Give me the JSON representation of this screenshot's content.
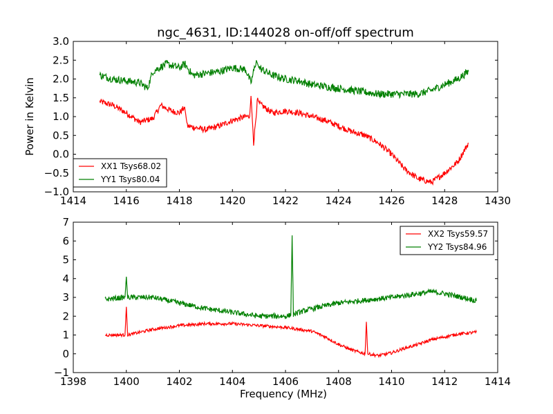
{
  "chart_data": [
    {
      "type": "line",
      "title": "ngc_4631, ID:144028 on-off/off spectrum",
      "xlabel": "",
      "ylabel": "Power in Kelvin",
      "xlim": [
        1414,
        1430
      ],
      "ylim": [
        -1.0,
        3.0
      ],
      "xticks": [
        "1414",
        "1416",
        "1418",
        "1420",
        "1422",
        "1424",
        "1426",
        "1428",
        "1430"
      ],
      "yticks": [
        "−1.0",
        "−0.5",
        "0.0",
        "0.5",
        "1.0",
        "1.5",
        "2.0",
        "2.5",
        "3.0"
      ],
      "xtick_values": [
        1414,
        1416,
        1418,
        1420,
        1422,
        1424,
        1426,
        1428,
        1430
      ],
      "ytick_values": [
        -1.0,
        -0.5,
        0.0,
        0.5,
        1.0,
        1.5,
        2.0,
        2.5,
        3.0
      ],
      "legend_position": "lower-left",
      "series": [
        {
          "name": "XX1 Tsys68.02",
          "color": "#ff0000",
          "noise": 0.08,
          "x": [
            1415,
            1415.5,
            1416,
            1416.5,
            1417,
            1417.3,
            1417.7,
            1418,
            1418.2,
            1418.3,
            1419,
            1419.5,
            1420,
            1420.5,
            1420.65,
            1420.7,
            1420.8,
            1420.95,
            1421,
            1421.5,
            1422,
            1422.5,
            1423,
            1423.5,
            1424,
            1424.5,
            1425,
            1425.5,
            1426,
            1426.5,
            1427,
            1427.5,
            1428,
            1428.5,
            1428.9
          ],
          "y": [
            1.4,
            1.3,
            1.1,
            0.85,
            0.95,
            1.3,
            1.15,
            1.1,
            1.25,
            0.75,
            0.65,
            0.75,
            0.9,
            1.0,
            1.0,
            1.55,
            0.3,
            1.5,
            1.35,
            1.1,
            1.15,
            1.1,
            1.0,
            0.9,
            0.75,
            0.6,
            0.5,
            0.3,
            0.0,
            -0.4,
            -0.65,
            -0.75,
            -0.5,
            -0.2,
            0.3
          ]
        },
        {
          "name": "YY1 Tsys80.04",
          "color": "#008000",
          "noise": 0.1,
          "x": [
            1415,
            1415.5,
            1416,
            1416.5,
            1416.8,
            1417,
            1417.5,
            1418,
            1418.2,
            1418.5,
            1419,
            1419.5,
            1420,
            1420.5,
            1420.7,
            1420.9,
            1421,
            1421.5,
            1422,
            1422.5,
            1423,
            1423.5,
            1424,
            1424.5,
            1425,
            1425.5,
            1426,
            1426.5,
            1427,
            1427.5,
            1428,
            1428.5,
            1428.9
          ],
          "y": [
            2.1,
            2.0,
            1.95,
            1.9,
            1.75,
            2.2,
            2.4,
            2.3,
            2.4,
            2.1,
            2.15,
            2.2,
            2.3,
            2.25,
            1.9,
            2.5,
            2.3,
            2.1,
            2.0,
            1.95,
            1.85,
            1.8,
            1.75,
            1.7,
            1.65,
            1.6,
            1.6,
            1.6,
            1.6,
            1.7,
            1.85,
            2.0,
            2.2
          ]
        }
      ]
    },
    {
      "type": "line",
      "title": "",
      "xlabel": "Frequency (MHz)",
      "ylabel": "",
      "xlim": [
        1398,
        1414
      ],
      "ylim": [
        -1,
        7
      ],
      "xticks": [
        "1398",
        "1400",
        "1402",
        "1404",
        "1406",
        "1408",
        "1410",
        "1412",
        "1414"
      ],
      "yticks": [
        "−1",
        "0",
        "1",
        "2",
        "3",
        "4",
        "5",
        "6",
        "7"
      ],
      "xtick_values": [
        1398,
        1400,
        1402,
        1404,
        1406,
        1408,
        1410,
        1412,
        1414
      ],
      "ytick_values": [
        -1,
        0,
        1,
        2,
        3,
        4,
        5,
        6,
        7
      ],
      "legend_position": "upper-right",
      "series": [
        {
          "name": "XX2 Tsys59.57",
          "color": "#ff0000",
          "noise": 0.08,
          "x": [
            1399.2,
            1399.95,
            1400.0,
            1400.05,
            1401,
            1402,
            1403,
            1404,
            1405,
            1406,
            1407,
            1407.5,
            1408,
            1408.5,
            1409.0,
            1409.05,
            1409.1,
            1409.5,
            1410,
            1410.5,
            1411,
            1411.5,
            1412,
            1412.5,
            1413.2
          ],
          "y": [
            1.0,
            1.0,
            2.5,
            1.0,
            1.3,
            1.5,
            1.6,
            1.6,
            1.5,
            1.4,
            1.2,
            0.9,
            0.5,
            0.2,
            0.0,
            1.7,
            0.0,
            -0.1,
            0.05,
            0.3,
            0.5,
            0.75,
            0.9,
            1.05,
            1.15
          ]
        },
        {
          "name": "YY2 Tsys84.96",
          "color": "#008000",
          "noise": 0.14,
          "x": [
            1399.2,
            1399.95,
            1400.0,
            1400.05,
            1401,
            1402,
            1403,
            1404,
            1405,
            1406,
            1406.2,
            1406.25,
            1406.3,
            1406.5,
            1407,
            1408,
            1409,
            1410,
            1411,
            1411.5,
            1412,
            1413,
            1413.2
          ],
          "y": [
            2.9,
            3.0,
            4.1,
            3.0,
            3.0,
            2.7,
            2.4,
            2.2,
            2.0,
            2.0,
            2.05,
            6.3,
            2.1,
            2.2,
            2.4,
            2.7,
            2.85,
            3.0,
            3.2,
            3.3,
            3.2,
            2.9,
            2.8
          ]
        }
      ]
    }
  ]
}
